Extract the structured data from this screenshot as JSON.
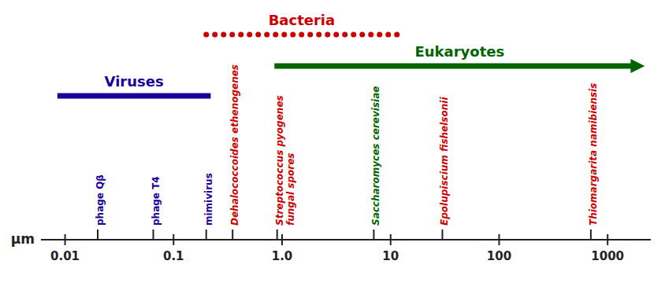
{
  "chart_data": {
    "type": "range",
    "log": "x",
    "x_label": "μm",
    "xlim": [
      0.006,
      2500
    ],
    "xticks": [
      0.01,
      0.1,
      {
        "value": 1.0,
        "label": "1.0"
      },
      10,
      100,
      1000
    ],
    "series": [
      {
        "name": "Viruses",
        "color": "#1a0099",
        "values": [
          0.0085,
          0.22
        ]
      },
      {
        "name": "Bacteria",
        "color": "#cc0000",
        "values": [
          0.2,
          11.5
        ],
        "line_style": "dotted"
      },
      {
        "name": "Eukaryotes",
        "color": "#006400",
        "values": [
          0.85,
          2200
        ],
        "marker": "arrow"
      }
    ],
    "annotations": [
      {
        "text": "phage Qβ",
        "x": 0.02,
        "color": "#1a0099",
        "italic": false
      },
      {
        "text": "phage T4",
        "x": 0.065,
        "color": "#1a0099",
        "italic": false
      },
      {
        "text": "mimivirus",
        "x": 0.2,
        "color": "#1a0099",
        "italic": false
      },
      {
        "text": "Dehalococcoides ethenogenes",
        "x": 0.35,
        "color": "#cc0000",
        "italic": true
      },
      {
        "text": "Streptococcus pyogenes\nfungal spores",
        "x": 0.9,
        "color": "#cc0000",
        "italic": true
      },
      {
        "text": "Saccharomyces cerevisiae",
        "x": 7.0,
        "color": "#006400",
        "italic": true
      },
      {
        "text": "Epolupiscium fishelsonii",
        "x": 30.0,
        "color": "#cc0000",
        "italic": true
      },
      {
        "text": "Thiomargarita namibiensis",
        "x": 700.0,
        "color": "#cc0000",
        "italic": true
      }
    ]
  }
}
